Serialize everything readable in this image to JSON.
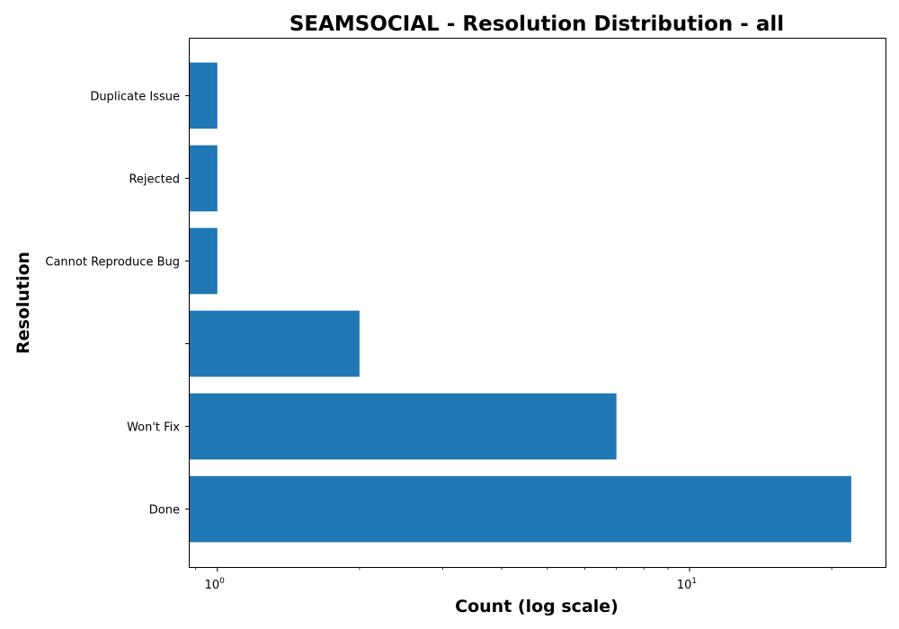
{
  "chart_data": {
    "type": "bar",
    "orientation": "horizontal",
    "title": "SEAMSOCIAL - Resolution Distribution - all",
    "xlabel": "Count (log scale)",
    "ylabel": "Resolution",
    "x_scale": "log",
    "xlim": [
      0.87,
      26
    ],
    "x_tick_base": "10",
    "x_tick_exponents": [
      "0",
      "1"
    ],
    "categories": [
      "Done",
      "Won't Fix",
      "",
      "Cannot Reproduce Bug",
      "Rejected",
      "Duplicate Issue"
    ],
    "values": [
      22,
      7,
      2,
      1,
      1,
      1
    ],
    "bar_color": "#1f77b4",
    "grid": false,
    "legend": "none"
  }
}
